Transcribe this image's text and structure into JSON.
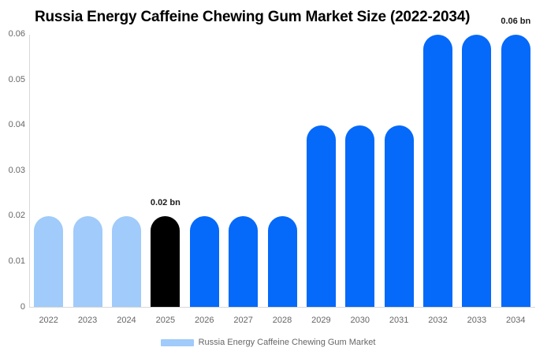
{
  "chart_data": {
    "type": "bar",
    "title": "Russia Energy Caffeine Chewing Gum Market Size (2022-2034)",
    "categories": [
      "2022",
      "2023",
      "2024",
      "2025",
      "2026",
      "2027",
      "2028",
      "2029",
      "2030",
      "2031",
      "2032",
      "2033",
      "2034"
    ],
    "values": [
      0.02,
      0.02,
      0.02,
      0.02,
      0.02,
      0.02,
      0.02,
      0.04,
      0.04,
      0.04,
      0.06,
      0.06,
      0.06
    ],
    "unit": "bn",
    "xlabel": "",
    "ylabel": "",
    "ylim": [
      0,
      0.06
    ],
    "ytick_values": [
      0,
      0.01,
      0.02,
      0.03,
      0.04,
      0.05,
      0.06
    ],
    "ytick_labels": [
      "0",
      "0.01",
      "0.02",
      "0.03",
      "0.04",
      "0.05",
      "0.06"
    ],
    "grid": false,
    "bar_roles": [
      "past",
      "past",
      "past",
      "current",
      "forecast",
      "forecast",
      "forecast",
      "forecast",
      "forecast",
      "forecast",
      "forecast",
      "forecast",
      "forecast"
    ],
    "annotations": [
      {
        "category": "2025",
        "text": "0.02 bn"
      },
      {
        "category": "2034",
        "text": "0.06 bn"
      }
    ],
    "legend": [
      {
        "label": "Russia Energy Caffeine Chewing Gum Market",
        "swatch": "#a0cbfa"
      }
    ],
    "legend_position": "bottom-center"
  },
  "colors": {
    "past_bar": "#a0cbfa",
    "current_bar": "#000000",
    "forecast_bar": "#0569fa",
    "axis_line": "#d8d8d8",
    "tick_label": "#666666",
    "legend_text": "#666666",
    "annotation_text": "#1a1a1a",
    "title_text": "#000000",
    "background": "#ffffff"
  }
}
